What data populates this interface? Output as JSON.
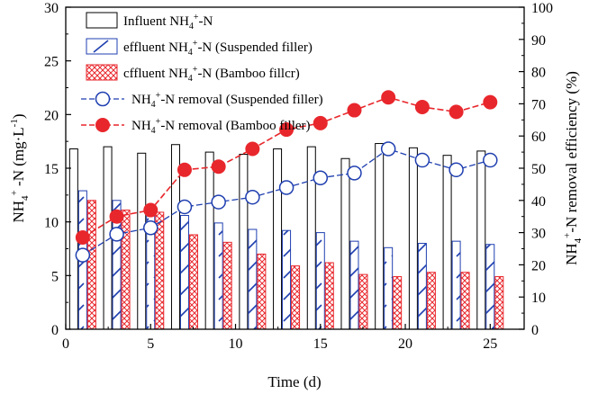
{
  "chart_data": {
    "type": "bar",
    "x": [
      1,
      3,
      5,
      7,
      9,
      11,
      13,
      15,
      17,
      19,
      21,
      23,
      25
    ],
    "series": [
      {
        "name": "Influent NH4+-N",
        "kind": "bar",
        "axis": "left",
        "values": [
          16.8,
          17.0,
          16.4,
          17.2,
          16.5,
          16.3,
          16.8,
          17.0,
          15.9,
          17.3,
          16.9,
          16.2,
          16.6
        ]
      },
      {
        "name": "effluent NH4+-N (Suspended filler)",
        "kind": "bar",
        "axis": "left",
        "values": [
          12.9,
          12.0,
          11.0,
          10.6,
          9.9,
          9.3,
          9.2,
          9.0,
          8.2,
          7.6,
          8.0,
          8.2,
          7.9
        ]
      },
      {
        "name": "effluent NH4+-N (Bamboo filler)",
        "kind": "bar",
        "axis": "left",
        "values": [
          12.0,
          11.1,
          10.9,
          8.8,
          8.1,
          7.0,
          5.9,
          6.2,
          5.1,
          4.9,
          5.3,
          5.3,
          4.9
        ]
      },
      {
        "name": "NH4+-N removal (Suspended filler)",
        "kind": "line",
        "axis": "right",
        "values": [
          23,
          29.5,
          31.5,
          38,
          39.5,
          41,
          44,
          47,
          48.5,
          56,
          52.5,
          49.5,
          52.5
        ]
      },
      {
        "name": "NH4+-N removal (Bamboo filler)",
        "kind": "line",
        "axis": "right",
        "values": [
          28.5,
          35,
          37,
          49.5,
          50.5,
          56,
          62,
          64,
          68,
          72,
          69,
          67.5,
          70.5
        ]
      }
    ],
    "xlabel": "Time (d)",
    "ylabel": "NH4+-N (mg·L-1)",
    "ylabel_right": "NH4+-N removal efficiency (%)",
    "xlim": [
      0,
      27
    ],
    "ylim": [
      0,
      30
    ],
    "ylim_right": [
      0,
      100
    ],
    "x_ticks": [
      0,
      5,
      10,
      15,
      20,
      25
    ],
    "y_ticks": [
      0,
      5,
      10,
      15,
      20,
      25,
      30
    ],
    "y_ticks_right": [
      0,
      10,
      20,
      30,
      40,
      50,
      60,
      70,
      80,
      90,
      100
    ],
    "grid": false,
    "legend_position": "top-left"
  },
  "legend": {
    "influent": {
      "pre": "Influent NH",
      "sub": "4",
      "sup": "+",
      "post": "-N"
    },
    "effluent_suspended": {
      "pre": "effluent NH",
      "sub": "4",
      "sup": "+",
      "post": "-N (Suspended filler)"
    },
    "effluent_bamboo": {
      "pre": "cffluent NH",
      "sub": "4",
      "sup": "+",
      "post": "-N (Bamboo fillcr)"
    },
    "removal_suspended": {
      "pre": "NH",
      "sub": "4",
      "sup": "+",
      "post": "-N removal (Suspended filler)"
    },
    "removal_bamboo": {
      "pre": "NH",
      "sub": "4",
      "sup": "+",
      "post": "-N removal (Bamboo filler)"
    }
  },
  "axes": {
    "left_label": {
      "pre": "NH",
      "sub": "4",
      "sup": "+",
      "mid": " -N (mg·L",
      "sup2": "-1",
      "post": ")"
    },
    "right_label": {
      "pre": "NH",
      "sub": "4",
      "sup": "+",
      "post": "-N removal efficiency (%)"
    },
    "x_label": "Time (d)"
  },
  "colors": {
    "axis": "#000000",
    "influent_bar": "#000000",
    "suspended": "#1f3fb0",
    "bamboo": "#e8272c"
  }
}
